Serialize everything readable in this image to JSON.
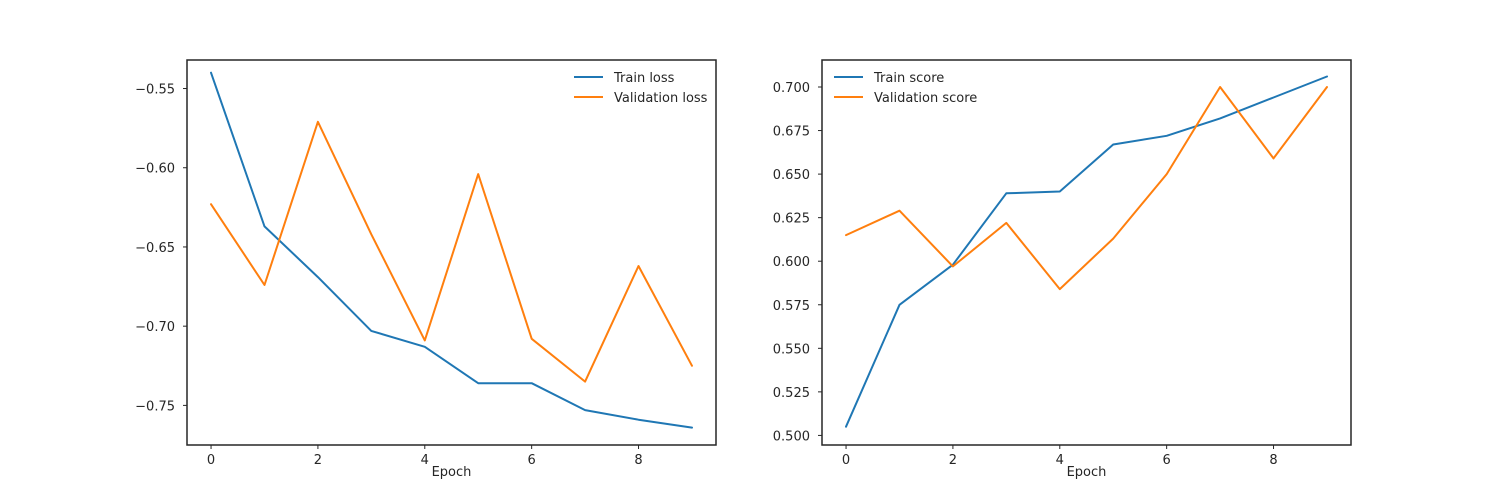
{
  "chart_data": [
    {
      "type": "line",
      "xlabel": "Epoch",
      "ylabel": "",
      "title": "",
      "xlim": [
        -0.45,
        9.45
      ],
      "ylim": [
        -0.775,
        -0.532
      ],
      "xticks": [
        0,
        2,
        4,
        6,
        8
      ],
      "yticks": [
        -0.55,
        -0.6,
        -0.65,
        -0.7,
        -0.75
      ],
      "ytick_labels": [
        "−0.55",
        "−0.60",
        "−0.65",
        "−0.70",
        "−0.75"
      ],
      "xtick_labels": [
        "0",
        "2",
        "4",
        "6",
        "8"
      ],
      "grid": false,
      "legend_position": "top-right",
      "x": [
        0,
        1,
        2,
        3,
        4,
        5,
        6,
        7,
        8,
        9
      ],
      "series": [
        {
          "name": "Train loss",
          "color": "#1f77b4",
          "values": [
            -0.54,
            -0.637,
            -0.669,
            -0.703,
            -0.713,
            -0.736,
            -0.736,
            -0.753,
            -0.759,
            -0.764
          ]
        },
        {
          "name": "Validation loss",
          "color": "#ff7f0e",
          "values": [
            -0.623,
            -0.674,
            -0.571,
            -0.642,
            -0.709,
            -0.604,
            -0.708,
            -0.735,
            -0.662,
            -0.725
          ]
        }
      ]
    },
    {
      "type": "line",
      "xlabel": "Epoch",
      "ylabel": "",
      "title": "",
      "xlim": [
        -0.45,
        9.45
      ],
      "ylim": [
        0.4945,
        0.7155
      ],
      "xticks": [
        0,
        2,
        4,
        6,
        8
      ],
      "yticks": [
        0.5,
        0.525,
        0.55,
        0.575,
        0.6,
        0.625,
        0.65,
        0.675,
        0.7
      ],
      "ytick_labels": [
        "0.500",
        "0.525",
        "0.550",
        "0.575",
        "0.600",
        "0.625",
        "0.650",
        "0.675",
        "0.700"
      ],
      "xtick_labels": [
        "0",
        "2",
        "4",
        "6",
        "8"
      ],
      "grid": false,
      "legend_position": "top-left",
      "x": [
        0,
        1,
        2,
        3,
        4,
        5,
        6,
        7,
        8,
        9
      ],
      "series": [
        {
          "name": "Train score",
          "color": "#1f77b4",
          "values": [
            0.505,
            0.575,
            0.598,
            0.639,
            0.64,
            0.667,
            0.672,
            0.682,
            0.694,
            0.706
          ]
        },
        {
          "name": "Validation score",
          "color": "#ff7f0e",
          "values": [
            0.615,
            0.629,
            0.597,
            0.622,
            0.584,
            0.613,
            0.65,
            0.7,
            0.659,
            0.7
          ]
        }
      ]
    }
  ]
}
